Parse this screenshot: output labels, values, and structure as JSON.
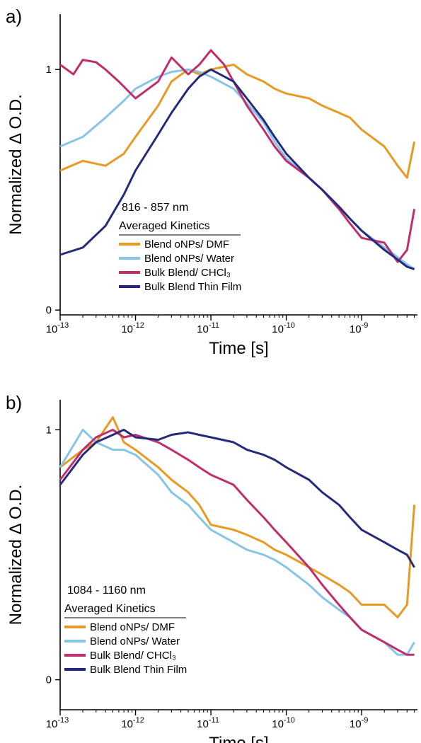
{
  "chart_data": [
    {
      "type": "line",
      "panel_label": "a)",
      "xlabel": "Time [s]",
      "ylabel": "Normalized Δ O.D.",
      "xscale": "log",
      "xlim": [
        1e-13,
        5.5e-09
      ],
      "ylim": [
        -0.02,
        1.23
      ],
      "x_ticks": [
        {
          "value": 1e-13,
          "base": "10",
          "exp": "-13"
        },
        {
          "value": 1e-12,
          "base": "10",
          "exp": "-12"
        },
        {
          "value": 1e-11,
          "base": "10",
          "exp": "-11"
        },
        {
          "value": 1e-10,
          "base": "10",
          "exp": "-10"
        },
        {
          "value": 1e-09,
          "base": "10",
          "exp": "-9"
        }
      ],
      "y_ticks": [
        {
          "value": 0,
          "label": "0"
        },
        {
          "value": 1,
          "label": "1"
        }
      ],
      "legend_title_line1": "816 - 857 nm",
      "legend_title_line2": "Averaged Kinetics",
      "legend_placement": "lower-left",
      "grid": false,
      "series": [
        {
          "name": "Blend oNPs/ DMF",
          "color": "#E89A24",
          "x": [
            1e-13,
            2e-13,
            4e-13,
            7e-13,
            1e-12,
            2e-12,
            3e-12,
            5e-12,
            7e-12,
            1e-11,
            2e-11,
            3e-11,
            5e-11,
            7e-11,
            1e-10,
            2e-10,
            3e-10,
            5e-10,
            7e-10,
            1e-09,
            2e-09,
            3e-09,
            4e-09,
            5e-09
          ],
          "y": [
            0.58,
            0.62,
            0.6,
            0.65,
            0.72,
            0.85,
            0.95,
            1.0,
            0.98,
            1.0,
            1.02,
            0.98,
            0.95,
            0.92,
            0.9,
            0.88,
            0.85,
            0.82,
            0.8,
            0.75,
            0.68,
            0.6,
            0.55,
            0.7
          ]
        },
        {
          "name": "Blend oNPs/ Water",
          "color": "#86C5E8",
          "x": [
            1e-13,
            2e-13,
            4e-13,
            7e-13,
            1e-12,
            2e-12,
            3e-12,
            5e-12,
            7e-12,
            1e-11,
            2e-11,
            3e-11,
            5e-11,
            7e-11,
            1e-10,
            2e-10,
            3e-10,
            5e-10,
            7e-10,
            1e-09,
            2e-09,
            3e-09,
            4e-09,
            5e-09
          ],
          "y": [
            0.68,
            0.72,
            0.8,
            0.87,
            0.92,
            0.97,
            0.99,
            1.0,
            0.99,
            0.97,
            0.92,
            0.86,
            0.78,
            0.7,
            0.63,
            0.55,
            0.5,
            0.43,
            0.38,
            0.33,
            0.26,
            0.22,
            0.19,
            0.17
          ]
        },
        {
          "name": "Bulk Blend/ CHCl₃",
          "color": "#C02E6B",
          "x": [
            1e-13,
            1.5e-13,
            2e-13,
            3e-13,
            4e-13,
            6e-13,
            1e-12,
            2e-12,
            3e-12,
            5e-12,
            7e-12,
            1e-11,
            1.5e-11,
            2e-11,
            3e-11,
            5e-11,
            7e-11,
            1e-10,
            2e-10,
            3e-10,
            5e-10,
            7e-10,
            1e-09,
            2e-09,
            3e-09,
            4e-09,
            5e-09
          ],
          "y": [
            1.02,
            0.98,
            1.04,
            1.03,
            1.0,
            0.95,
            0.88,
            0.95,
            1.05,
            0.98,
            1.02,
            1.08,
            1.02,
            0.95,
            0.85,
            0.75,
            0.68,
            0.62,
            0.55,
            0.5,
            0.42,
            0.36,
            0.3,
            0.28,
            0.2,
            0.25,
            0.42
          ]
        },
        {
          "name": "Bulk Blend Thin Film",
          "color": "#262A7A",
          "x": [
            1e-13,
            2e-13,
            4e-13,
            7e-13,
            1e-12,
            2e-12,
            3e-12,
            5e-12,
            7e-12,
            1e-11,
            2e-11,
            3e-11,
            5e-11,
            7e-11,
            1e-10,
            2e-10,
            3e-10,
            5e-10,
            7e-10,
            1e-09,
            2e-09,
            3e-09,
            4e-09,
            5e-09
          ],
          "y": [
            0.23,
            0.26,
            0.35,
            0.48,
            0.58,
            0.73,
            0.82,
            0.92,
            0.97,
            1.0,
            0.95,
            0.88,
            0.79,
            0.72,
            0.65,
            0.55,
            0.5,
            0.43,
            0.38,
            0.33,
            0.25,
            0.21,
            0.18,
            0.17
          ]
        }
      ]
    },
    {
      "type": "line",
      "panel_label": "b)",
      "xlabel": "Time [s]",
      "ylabel": "Normalized Δ O.D.",
      "xscale": "log",
      "xlim": [
        1e-13,
        5.5e-09
      ],
      "ylim": [
        -0.12,
        1.12
      ],
      "x_ticks": [
        {
          "value": 1e-13,
          "base": "10",
          "exp": "-13"
        },
        {
          "value": 1e-12,
          "base": "10",
          "exp": "-12"
        },
        {
          "value": 1e-11,
          "base": "10",
          "exp": "-11"
        },
        {
          "value": 1e-10,
          "base": "10",
          "exp": "-10"
        },
        {
          "value": 1e-09,
          "base": "10",
          "exp": "-9"
        }
      ],
      "y_ticks": [
        {
          "value": 0,
          "label": "0"
        },
        {
          "value": 1,
          "label": "1"
        }
      ],
      "legend_title_line1": "1084 - 1160 nm",
      "legend_title_line2": "Averaged Kinetics",
      "legend_placement": "lower-left",
      "grid": false,
      "series": [
        {
          "name": "Blend oNPs/ DMF",
          "color": "#E89A24",
          "x": [
            1e-13,
            2e-13,
            3e-13,
            5e-13,
            7e-13,
            1e-12,
            2e-12,
            3e-12,
            5e-12,
            7e-12,
            1e-11,
            2e-11,
            3e-11,
            5e-11,
            7e-11,
            1e-10,
            2e-10,
            3e-10,
            5e-10,
            7e-10,
            1e-09,
            2e-09,
            3e-09,
            4e-09,
            5e-09
          ],
          "y": [
            0.85,
            0.92,
            0.95,
            1.05,
            0.95,
            0.92,
            0.85,
            0.8,
            0.75,
            0.7,
            0.62,
            0.6,
            0.58,
            0.55,
            0.52,
            0.5,
            0.45,
            0.42,
            0.38,
            0.35,
            0.3,
            0.3,
            0.25,
            0.3,
            0.7
          ]
        },
        {
          "name": "Blend oNPs/ Water",
          "color": "#86C5E8",
          "x": [
            1e-13,
            2e-13,
            3e-13,
            5e-13,
            7e-13,
            1e-12,
            2e-12,
            3e-12,
            5e-12,
            7e-12,
            1e-11,
            2e-11,
            3e-11,
            5e-11,
            7e-11,
            1e-10,
            2e-10,
            3e-10,
            5e-10,
            7e-10,
            1e-09,
            2e-09,
            3e-09,
            4e-09,
            5e-09
          ],
          "y": [
            0.85,
            1.0,
            0.95,
            0.92,
            0.92,
            0.9,
            0.82,
            0.75,
            0.7,
            0.65,
            0.6,
            0.55,
            0.52,
            0.5,
            0.48,
            0.45,
            0.38,
            0.33,
            0.28,
            0.25,
            0.2,
            0.15,
            0.1,
            0.1,
            0.15
          ]
        },
        {
          "name": "Bulk Blend/ CHCl₃",
          "color": "#C02E6B",
          "x": [
            1e-13,
            2e-13,
            3e-13,
            5e-13,
            7e-13,
            1e-12,
            2e-12,
            3e-12,
            5e-12,
            7e-12,
            1e-11,
            2e-11,
            3e-11,
            5e-11,
            7e-11,
            1e-10,
            2e-10,
            3e-10,
            5e-10,
            7e-10,
            1e-09,
            2e-09,
            3e-09,
            4e-09,
            5e-09
          ],
          "y": [
            0.8,
            0.92,
            0.97,
            1.0,
            0.97,
            0.98,
            0.95,
            0.92,
            0.88,
            0.85,
            0.82,
            0.78,
            0.72,
            0.65,
            0.6,
            0.55,
            0.45,
            0.38,
            0.3,
            0.25,
            0.2,
            0.15,
            0.12,
            0.1,
            0.1
          ]
        },
        {
          "name": "Bulk Blend Thin Film",
          "color": "#262A7A",
          "x": [
            1e-13,
            2e-13,
            3e-13,
            5e-13,
            7e-13,
            1e-12,
            2e-12,
            3e-12,
            5e-12,
            7e-12,
            1e-11,
            2e-11,
            3e-11,
            5e-11,
            7e-11,
            1e-10,
            2e-10,
            3e-10,
            5e-10,
            7e-10,
            1e-09,
            2e-09,
            3e-09,
            4e-09,
            5e-09
          ],
          "y": [
            0.78,
            0.9,
            0.95,
            0.98,
            1.0,
            0.97,
            0.96,
            0.98,
            0.99,
            0.98,
            0.97,
            0.95,
            0.92,
            0.9,
            0.88,
            0.85,
            0.8,
            0.75,
            0.7,
            0.65,
            0.6,
            0.55,
            0.52,
            0.5,
            0.45
          ]
        }
      ]
    }
  ]
}
